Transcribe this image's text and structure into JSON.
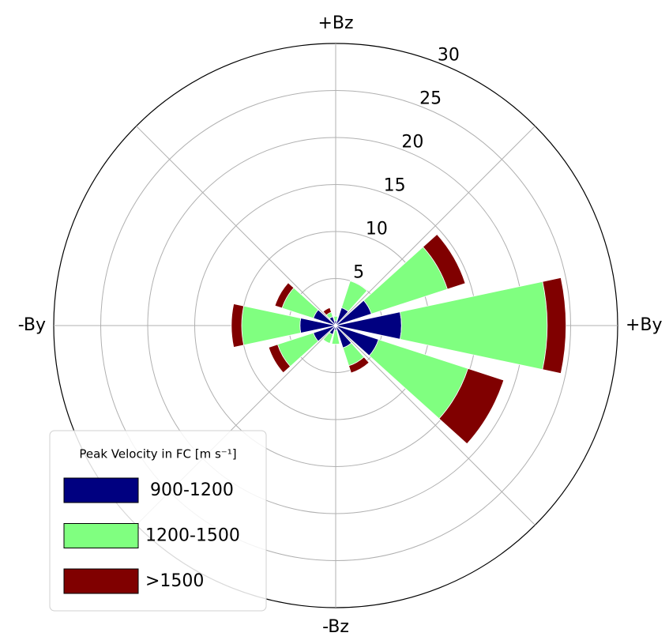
{
  "chart_data": {
    "type": "polar-stacked-bar",
    "theta": [
      0,
      30,
      60,
      90,
      120,
      150,
      180,
      210,
      240,
      270,
      300,
      330
    ],
    "bar_width_deg": 24,
    "series": [
      {
        "name": "900-1200",
        "color": "#000080",
        "values": [
          7,
          4,
          2,
          0.5,
          1,
          2.5,
          3.8,
          2.5,
          1,
          0.5,
          2.5,
          4.8
        ]
      },
      {
        "name": "1200-1500",
        "color": "#80ff80",
        "values": [
          15.5,
          8.5,
          3,
          0.5,
          0.5,
          3.5,
          6.2,
          4,
          1,
          1.5,
          2,
          10
        ]
      },
      {
        "name": ">1500",
        "color": "#800000",
        "values": [
          2,
          2,
          0,
          0,
          0.5,
          0.8,
          1.1,
          1,
          0,
          0,
          0.8,
          4
        ]
      }
    ],
    "ylim": [
      0,
      30
    ],
    "yticks": [
      5,
      10,
      15,
      20,
      25,
      30
    ],
    "thetaticks": [
      {
        "value": 0,
        "label": "+By"
      },
      {
        "value": 45,
        "label": null
      },
      {
        "value": 90,
        "label": "+Bz"
      },
      {
        "value": 135,
        "label": null
      },
      {
        "value": 180,
        "label": "-By"
      },
      {
        "value": 225,
        "label": null
      },
      {
        "value": 270,
        "label": "-Bz"
      },
      {
        "value": 315,
        "label": null
      }
    ],
    "grid": true,
    "legend": {
      "title": "Peak Velocity in FC [m s⁻¹]",
      "loc": "lower left"
    }
  }
}
